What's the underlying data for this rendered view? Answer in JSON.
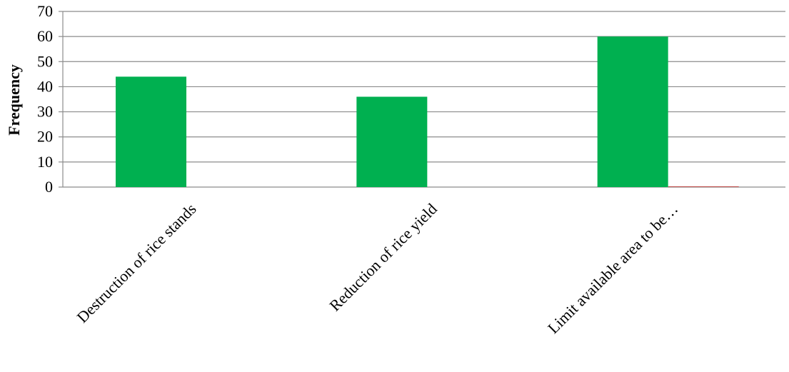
{
  "chart_data": {
    "type": "bar",
    "title": "",
    "xlabel": "",
    "ylabel": "Frequency",
    "ylim": [
      0,
      70
    ],
    "yticks": [
      0,
      10,
      20,
      30,
      40,
      50,
      60,
      70
    ],
    "categories": [
      "Destruction of rice stands",
      "Reduction of rice yield",
      "Limit available area to be…"
    ],
    "series": [
      {
        "values": [
          44,
          36,
          60
        ],
        "color": "#00b050"
      },
      {
        "values": [
          0,
          0,
          0.3
        ],
        "color": "#c0504d"
      }
    ],
    "grid": true,
    "legend": "none"
  }
}
